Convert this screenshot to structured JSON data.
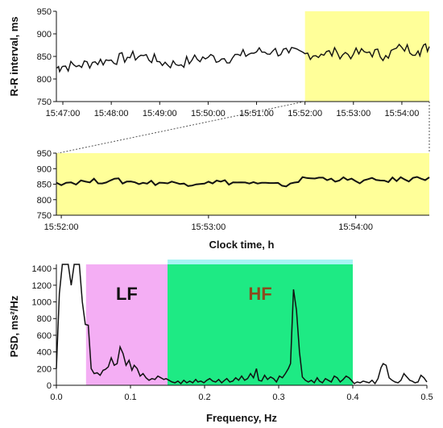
{
  "chart_data": [
    {
      "type": "line",
      "ylabel": "R-R interval, ms",
      "xlabel": "",
      "ylim": [
        750,
        950
      ],
      "yticks": [
        750,
        800,
        850,
        900,
        950
      ],
      "xticks": [
        "15:47:00",
        "15:48:00",
        "15:49:00",
        "15:50:00",
        "15:51:00",
        "15:52:00",
        "15:53:00",
        "15:54:00"
      ],
      "x_range": [
        "15:46:52",
        "15:54:34"
      ],
      "highlight": {
        "from": "15:52:00",
        "to": "15:54:34",
        "color": "#FFFF99"
      },
      "series": [
        {
          "x": [
            "15:46:52",
            "15:47:00",
            "15:47:20",
            "15:47:40",
            "15:48:00",
            "15:48:20",
            "15:48:40",
            "15:49:00",
            "15:49:20",
            "15:49:40",
            "15:50:00",
            "15:50:20",
            "15:50:40",
            "15:51:00",
            "15:51:20",
            "15:51:40",
            "15:52:00",
            "15:52:20",
            "15:52:40",
            "15:53:00",
            "15:53:20",
            "15:53:40",
            "15:54:00",
            "15:54:20",
            "15:54:34"
          ],
          "values": [
            825,
            828,
            830,
            838,
            842,
            848,
            852,
            838,
            832,
            842,
            848,
            845,
            852,
            860,
            862,
            858,
            856,
            855,
            858,
            855,
            860,
            852,
            870,
            862,
            872
          ]
        }
      ]
    },
    {
      "type": "line",
      "xlabel": "Clock time, h",
      "ylabel": "",
      "ylim": [
        750,
        950
      ],
      "yticks": [
        750,
        800,
        850,
        900,
        950
      ],
      "xticks": [
        "15:52:00",
        "15:53:00",
        "15:54:00"
      ],
      "x_range": [
        "15:51:58",
        "15:54:30"
      ],
      "highlight": {
        "from": "15:51:58",
        "to": "15:54:30",
        "color": "#FFFF99"
      },
      "series": [
        {
          "x": [
            "15:51:58",
            "15:52:10",
            "15:52:20",
            "15:52:30",
            "15:52:40",
            "15:52:50",
            "15:53:00",
            "15:53:10",
            "15:53:20",
            "15:53:30",
            "15:53:40",
            "15:53:50",
            "15:54:00",
            "15:54:10",
            "15:54:20",
            "15:54:30"
          ],
          "values": [
            855,
            858,
            862,
            856,
            855,
            852,
            858,
            856,
            852,
            845,
            870,
            868,
            860,
            862,
            865,
            872
          ]
        }
      ]
    },
    {
      "type": "line",
      "xlabel": "Frequency, Hz",
      "ylabel": "PSD, ms²/Hz",
      "ylim": [
        0,
        1450
      ],
      "xlim": [
        0.0,
        0.5
      ],
      "yticks": [
        0,
        200,
        400,
        600,
        800,
        1000,
        1200,
        1400
      ],
      "xticks": [
        0.0,
        0.1,
        0.2,
        0.3,
        0.4,
        0.5
      ],
      "bands": [
        {
          "label": "LF",
          "from": 0.04,
          "to": 0.15,
          "color": "#F4AEF4",
          "label_color": "#111111"
        },
        {
          "label": "HF",
          "from": 0.15,
          "to": 0.4,
          "color": "#1EEA84",
          "top_color": "#A6F4F4",
          "label_color": "#8B4A1E"
        }
      ],
      "series": [
        {
          "x": [
            0.0,
            0.004,
            0.008,
            0.012,
            0.016,
            0.02,
            0.024,
            0.028,
            0.031,
            0.035,
            0.039,
            0.043,
            0.047,
            0.051,
            0.055,
            0.059,
            0.063,
            0.066,
            0.07,
            0.074,
            0.078,
            0.082,
            0.086,
            0.09,
            0.094,
            0.098,
            0.102,
            0.105,
            0.109,
            0.113,
            0.117,
            0.121,
            0.125,
            0.129,
            0.133,
            0.137,
            0.141,
            0.145,
            0.148,
            0.152,
            0.156,
            0.16,
            0.164,
            0.168,
            0.172,
            0.176,
            0.18,
            0.184,
            0.188,
            0.191,
            0.195,
            0.199,
            0.203,
            0.207,
            0.211,
            0.215,
            0.219,
            0.223,
            0.227,
            0.23,
            0.234,
            0.238,
            0.242,
            0.246,
            0.25,
            0.254,
            0.258,
            0.262,
            0.266,
            0.27,
            0.273,
            0.277,
            0.281,
            0.285,
            0.289,
            0.293,
            0.297,
            0.301,
            0.305,
            0.309,
            0.313,
            0.316,
            0.32,
            0.324,
            0.328,
            0.332,
            0.336,
            0.34,
            0.344,
            0.348,
            0.352,
            0.355,
            0.359,
            0.363,
            0.367,
            0.371,
            0.375,
            0.379,
            0.383,
            0.387,
            0.391,
            0.395,
            0.398,
            0.402,
            0.406,
            0.41,
            0.414,
            0.418,
            0.422,
            0.426,
            0.43,
            0.434,
            0.438,
            0.441,
            0.445,
            0.449,
            0.453,
            0.457,
            0.461,
            0.465,
            0.469,
            0.473,
            0.477,
            0.48,
            0.484,
            0.488,
            0.492,
            0.496,
            0.5
          ],
          "values": [
            200,
            1100,
            1450,
            1450,
            1450,
            1200,
            1450,
            1450,
            1450,
            1000,
            730,
            720,
            200,
            140,
            150,
            120,
            180,
            190,
            220,
            330,
            240,
            260,
            460,
            380,
            240,
            300,
            180,
            240,
            200,
            110,
            140,
            90,
            60,
            80,
            70,
            110,
            90,
            70,
            80,
            60,
            40,
            30,
            50,
            20,
            60,
            30,
            50,
            30,
            70,
            40,
            50,
            30,
            60,
            80,
            50,
            40,
            70,
            30,
            60,
            80,
            40,
            50,
            90,
            60,
            110,
            60,
            80,
            140,
            90,
            200,
            60,
            50,
            120,
            70,
            100,
            80,
            40,
            110,
            90,
            140,
            200,
            260,
            1150,
            900,
            400,
            100,
            60,
            40,
            60,
            30,
            90,
            50,
            30,
            80,
            60,
            40,
            110,
            90,
            40,
            70,
            110,
            90,
            60,
            20,
            40,
            30,
            50,
            40,
            30,
            60,
            20,
            80,
            210,
            260,
            240,
            90,
            60,
            40,
            30,
            60,
            140,
            100,
            60,
            50,
            30,
            40,
            120,
            90,
            40
          ]
        }
      ]
    }
  ]
}
